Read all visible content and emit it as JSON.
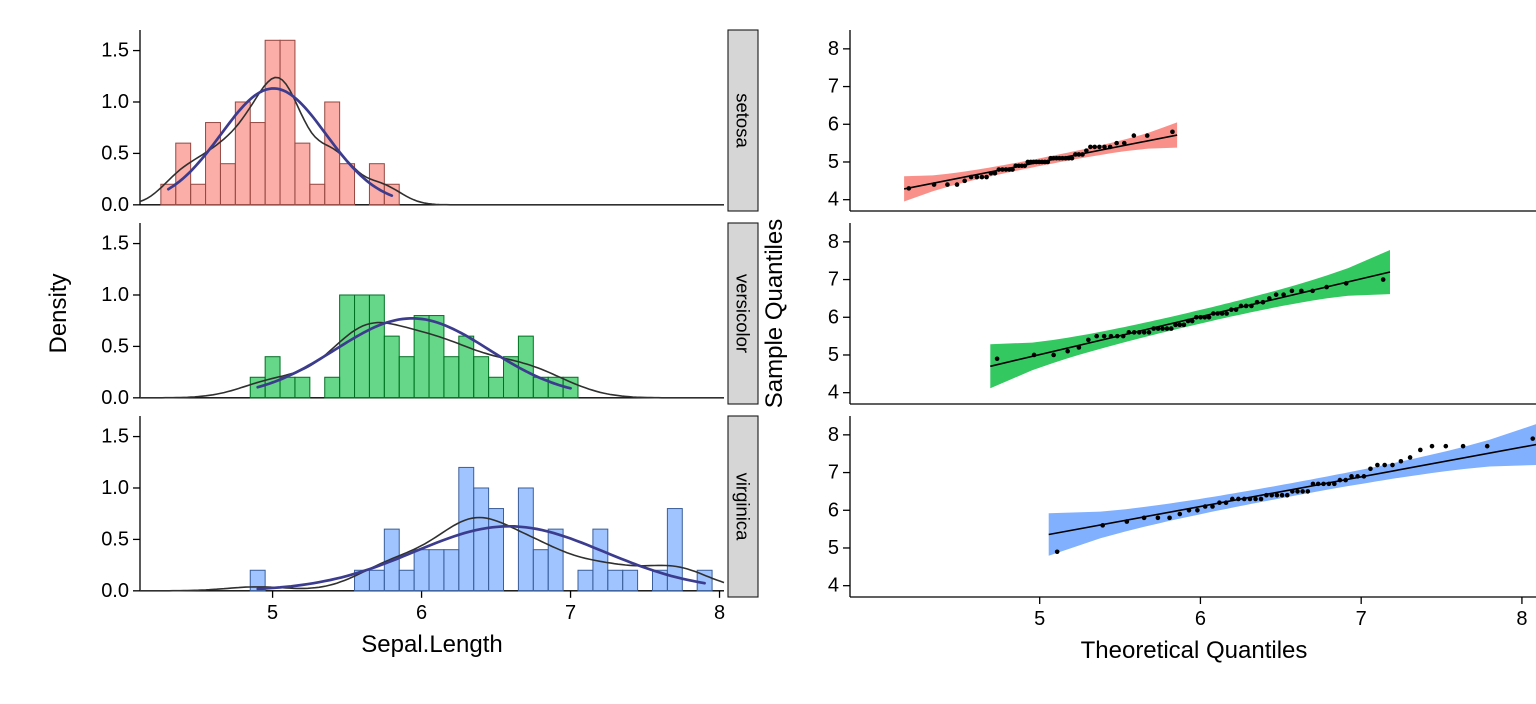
{
  "style": {
    "background": "#FFFFFF",
    "strip_fill": "#D6D6D6",
    "strip_border": "#1a1a1a",
    "axis_color": "#000000"
  },
  "chart_data": [
    {
      "type": "histogram",
      "title": "",
      "xlabel": "Sepal.Length",
      "ylabel": "Density",
      "xlim": [
        4.11,
        8.03
      ],
      "ylim": [
        -0.06,
        1.7
      ],
      "xticks": [
        5,
        6,
        7,
        8
      ],
      "xtick_labels": [
        "5",
        "6",
        "7",
        "8"
      ],
      "yticks": [
        0,
        0.5,
        1.0,
        1.5
      ],
      "ytick_labels": [
        "0.0",
        "0.5",
        "1.0",
        "1.5"
      ],
      "grid": false,
      "legend": "none",
      "facet_orientation": "rows",
      "strip_position": "right",
      "binwidth": 0.1,
      "bin_boundary": 4.25,
      "bar_fill_opacity": 0.6,
      "overlays": [
        {
          "name": "kernel-density-curve",
          "color": "#303030",
          "width": 1.6
        },
        {
          "name": "normal-density-curve",
          "color": "#3C3C8F",
          "width": 2.7
        }
      ],
      "facets": [
        {
          "label": "setosa",
          "color": "#F8766D",
          "n": 50,
          "mean": 5.006,
          "sd": 0.3525,
          "values": [
            4.3,
            4.4,
            4.4,
            4.4,
            4.5,
            4.6,
            4.6,
            4.6,
            4.6,
            4.7,
            4.7,
            4.8,
            4.8,
            4.8,
            4.8,
            4.8,
            4.9,
            4.9,
            4.9,
            4.9,
            5.0,
            5.0,
            5.0,
            5.0,
            5.0,
            5.0,
            5.0,
            5.0,
            5.1,
            5.1,
            5.1,
            5.1,
            5.1,
            5.1,
            5.1,
            5.1,
            5.2,
            5.2,
            5.2,
            5.3,
            5.4,
            5.4,
            5.4,
            5.4,
            5.4,
            5.5,
            5.5,
            5.7,
            5.7,
            5.8
          ]
        },
        {
          "label": "versicolor",
          "color": "#00BA38",
          "n": 50,
          "mean": 5.936,
          "sd": 0.5162,
          "values": [
            4.9,
            5.0,
            5.0,
            5.1,
            5.2,
            5.4,
            5.5,
            5.5,
            5.5,
            5.5,
            5.5,
            5.6,
            5.6,
            5.6,
            5.6,
            5.6,
            5.7,
            5.7,
            5.7,
            5.7,
            5.7,
            5.8,
            5.8,
            5.8,
            5.9,
            5.9,
            6.0,
            6.0,
            6.0,
            6.0,
            6.1,
            6.1,
            6.1,
            6.1,
            6.2,
            6.2,
            6.3,
            6.3,
            6.3,
            6.4,
            6.4,
            6.5,
            6.6,
            6.6,
            6.7,
            6.7,
            6.7,
            6.8,
            6.9,
            7.0
          ]
        },
        {
          "label": "virginica",
          "color": "#619CFF",
          "n": 50,
          "mean": 6.588,
          "sd": 0.6359,
          "values": [
            4.9,
            5.6,
            5.7,
            5.8,
            5.8,
            5.8,
            5.9,
            6.0,
            6.0,
            6.1,
            6.1,
            6.2,
            6.2,
            6.3,
            6.3,
            6.3,
            6.3,
            6.3,
            6.3,
            6.4,
            6.4,
            6.4,
            6.4,
            6.4,
            6.5,
            6.5,
            6.5,
            6.5,
            6.7,
            6.7,
            6.7,
            6.7,
            6.7,
            6.8,
            6.8,
            6.9,
            6.9,
            6.9,
            7.1,
            7.2,
            7.2,
            7.2,
            7.3,
            7.4,
            7.6,
            7.7,
            7.7,
            7.7,
            7.7,
            7.9
          ]
        }
      ]
    },
    {
      "type": "scatter",
      "variant": "qq-plot",
      "title": "",
      "xlabel": "Theoretical Quantiles",
      "ylabel": "Sample Quantiles",
      "xlim": [
        3.82,
        8.1
      ],
      "ylim": [
        3.7,
        8.5
      ],
      "xticks": [
        5,
        6,
        7,
        8
      ],
      "xtick_labels": [
        "5",
        "6",
        "7",
        "8"
      ],
      "yticks": [
        4,
        5,
        6,
        7,
        8
      ],
      "ytick_labels": [
        "4",
        "5",
        "6",
        "7",
        "8"
      ],
      "grid": false,
      "legend": "none",
      "facet_orientation": "rows",
      "strip_position": "right",
      "point_color": "#000000",
      "point_radius": 2.3,
      "line_color": "#000000",
      "band_opacity": 0.8,
      "facets": [
        {
          "label": "setosa",
          "color": "#F8766D",
          "n": 50,
          "mean": 5.006,
          "sd": 0.3525,
          "values": [
            4.3,
            4.4,
            4.4,
            4.4,
            4.5,
            4.6,
            4.6,
            4.6,
            4.6,
            4.7,
            4.7,
            4.8,
            4.8,
            4.8,
            4.8,
            4.8,
            4.9,
            4.9,
            4.9,
            4.9,
            5.0,
            5.0,
            5.0,
            5.0,
            5.0,
            5.0,
            5.0,
            5.0,
            5.1,
            5.1,
            5.1,
            5.1,
            5.1,
            5.1,
            5.1,
            5.1,
            5.2,
            5.2,
            5.2,
            5.3,
            5.4,
            5.4,
            5.4,
            5.4,
            5.4,
            5.5,
            5.5,
            5.7,
            5.7,
            5.8
          ]
        },
        {
          "label": "versicolor",
          "color": "#00BA38",
          "n": 50,
          "mean": 5.936,
          "sd": 0.5162,
          "values": [
            4.9,
            5.0,
            5.0,
            5.1,
            5.2,
            5.4,
            5.5,
            5.5,
            5.5,
            5.5,
            5.5,
            5.6,
            5.6,
            5.6,
            5.6,
            5.6,
            5.7,
            5.7,
            5.7,
            5.7,
            5.7,
            5.8,
            5.8,
            5.8,
            5.9,
            5.9,
            6.0,
            6.0,
            6.0,
            6.0,
            6.1,
            6.1,
            6.1,
            6.1,
            6.2,
            6.2,
            6.3,
            6.3,
            6.3,
            6.4,
            6.4,
            6.5,
            6.6,
            6.6,
            6.7,
            6.7,
            6.7,
            6.8,
            6.9,
            7.0
          ]
        },
        {
          "label": "virginica",
          "color": "#619CFF",
          "n": 50,
          "mean": 6.588,
          "sd": 0.6359,
          "values": [
            4.9,
            5.6,
            5.7,
            5.8,
            5.8,
            5.8,
            5.9,
            6.0,
            6.0,
            6.1,
            6.1,
            6.2,
            6.2,
            6.3,
            6.3,
            6.3,
            6.3,
            6.3,
            6.3,
            6.4,
            6.4,
            6.4,
            6.4,
            6.4,
            6.5,
            6.5,
            6.5,
            6.5,
            6.7,
            6.7,
            6.7,
            6.7,
            6.7,
            6.8,
            6.8,
            6.9,
            6.9,
            6.9,
            7.1,
            7.2,
            7.2,
            7.2,
            7.3,
            7.4,
            7.6,
            7.7,
            7.7,
            7.7,
            7.7,
            7.9
          ]
        }
      ]
    }
  ]
}
